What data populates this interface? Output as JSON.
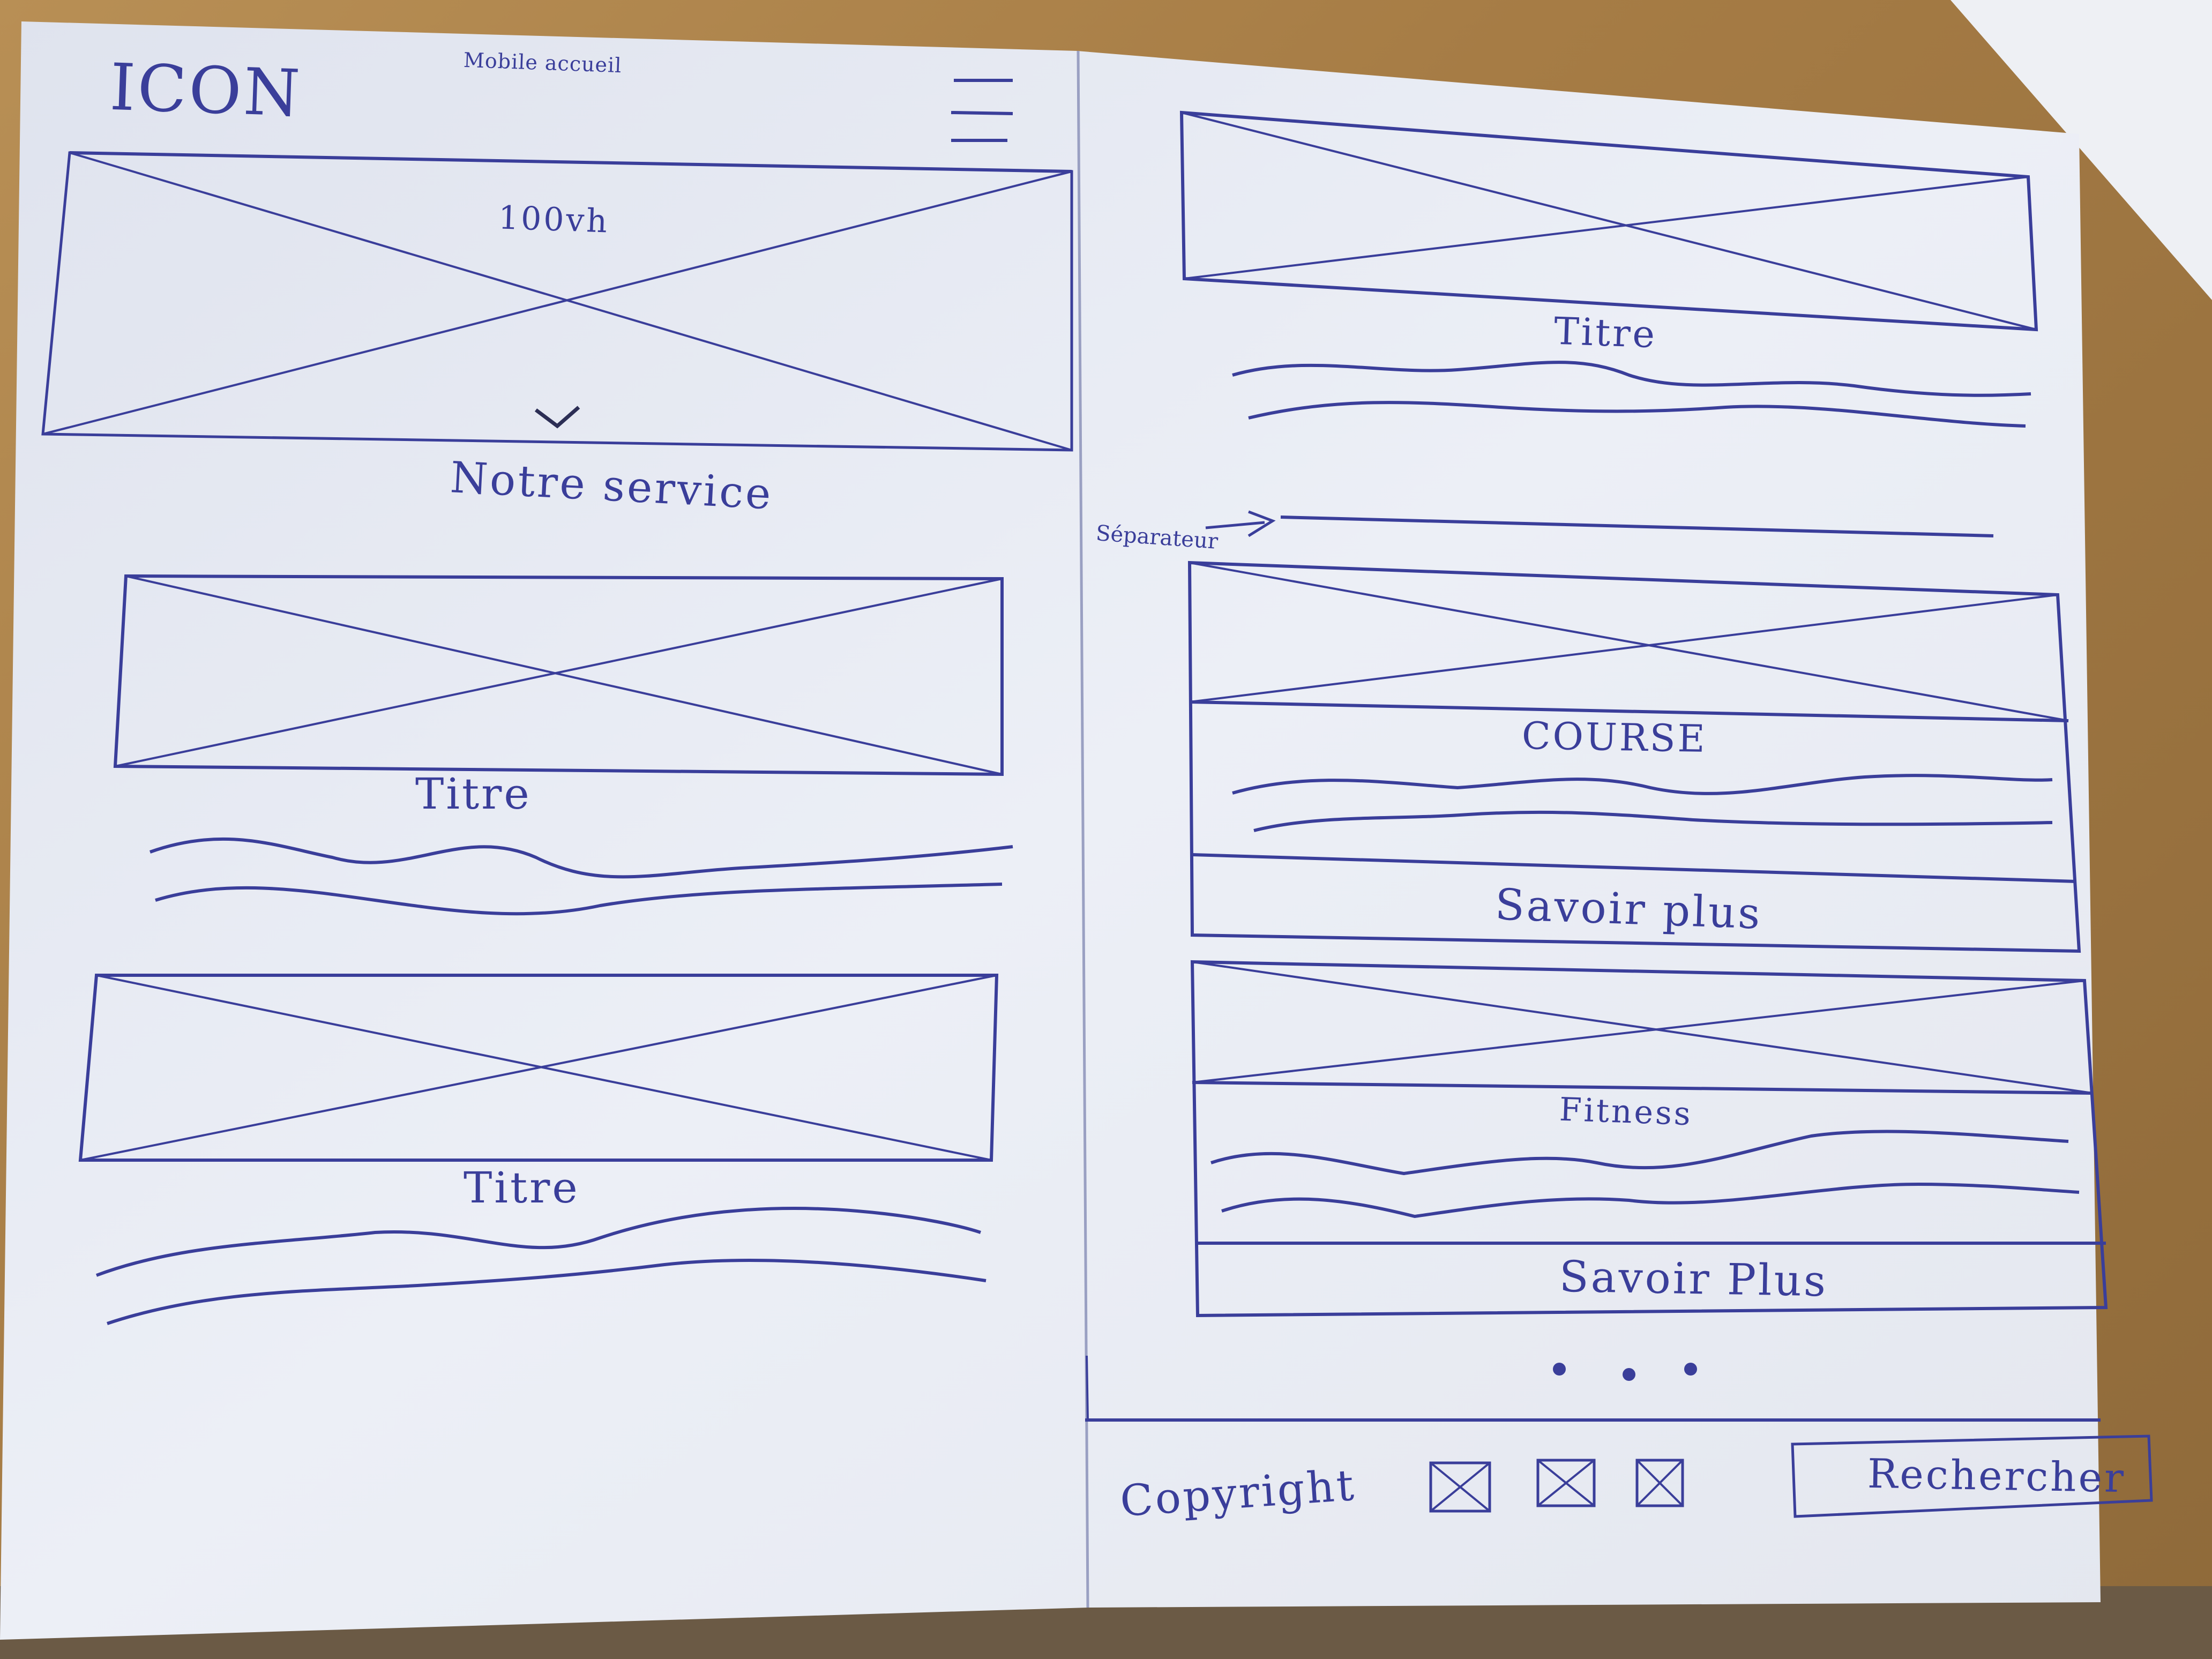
{
  "header": {
    "logo_text": "ICON",
    "page_label": "Mobile accueil",
    "menu_icon": "hamburger-menu-icon"
  },
  "hero": {
    "height_label": "100vh",
    "scroll_icon": "chevron-down-icon",
    "section_title": "Notre service"
  },
  "left_cards": [
    {
      "title": "Titre"
    },
    {
      "title": "Titre"
    }
  ],
  "right_column": {
    "top_card_title": "Titre",
    "separator_label": "Séparateur",
    "cards": [
      {
        "title": "COURSE",
        "button_label": "Savoir plus"
      },
      {
        "title": "Fitness",
        "button_label": "Savoir Plus"
      }
    ],
    "pagination_label": "• • •"
  },
  "footer": {
    "copyright": "Copyright",
    "social_icons": [
      "social-icon-1",
      "social-icon-2",
      "social-icon-3"
    ],
    "search_label": "Rechercher"
  },
  "colors": {
    "ink": "#3a3e9a",
    "paper": "#e9ecf4",
    "table": "#a67c45"
  }
}
